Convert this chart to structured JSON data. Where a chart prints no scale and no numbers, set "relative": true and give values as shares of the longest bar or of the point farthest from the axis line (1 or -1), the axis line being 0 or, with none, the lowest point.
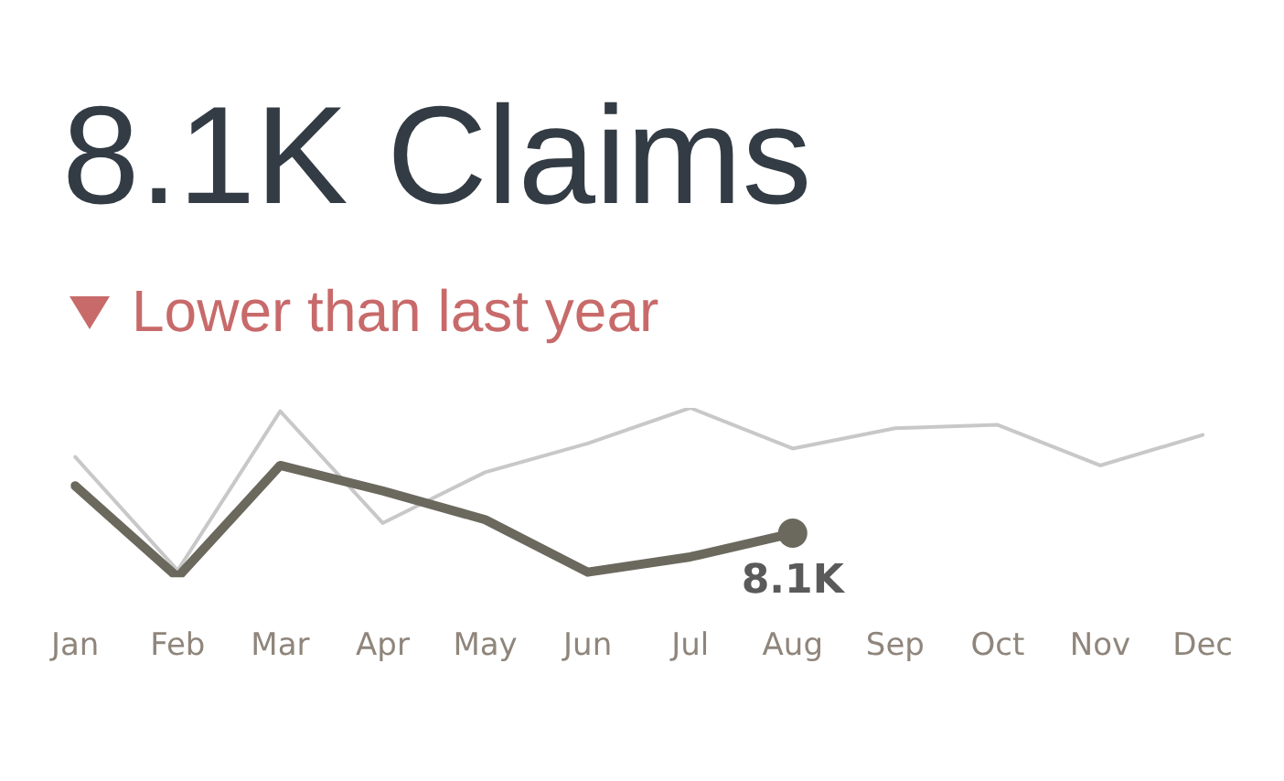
{
  "chart_data": {
    "type": "line",
    "title": "8.1K Claims",
    "subtitle": "Lower than last year",
    "relative": true,
    "categories": [
      "Jan",
      "Feb",
      "Mar",
      "Apr",
      "May",
      "Jun",
      "Jul",
      "Aug",
      "Sep",
      "Oct",
      "Nov",
      "Dec"
    ],
    "series": [
      {
        "color": "#c8c8c8",
        "values": [
          0.71,
          0.04,
          0.98,
          0.32,
          0.62,
          0.79,
          1,
          0.76,
          0.88,
          0.9,
          0.66,
          0.84
        ]
      },
      {
        "color": "#6b685e",
        "values": [
          0.54,
          0,
          0.66,
          0.51,
          0.34,
          0.03,
          0.12,
          0.26,
          null,
          null,
          null,
          null
        ]
      }
    ],
    "annotations": [
      {
        "text": "8.1K",
        "x": "Aug",
        "y": 0.26
      }
    ],
    "grid": false,
    "legend": false
  }
}
